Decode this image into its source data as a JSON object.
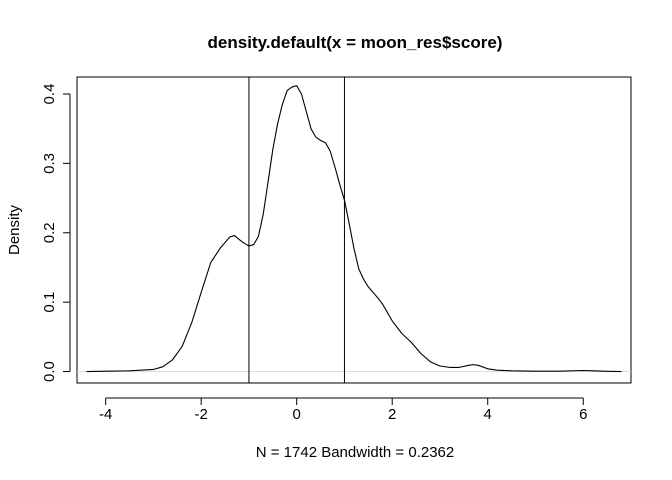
{
  "chart_data": {
    "type": "line",
    "title": "density.default(x = moon_res$score)",
    "xlabel": "N = 1742   Bandwidth = 0.2362",
    "ylabel": "Density",
    "xlim": [
      -4.6,
      7.0
    ],
    "ylim": [
      -0.0165,
      0.4245
    ],
    "x_ticks": [
      -4,
      -2,
      0,
      2,
      4,
      6
    ],
    "x_tick_labels": [
      "-4",
      "-2",
      "0",
      "2",
      "4",
      "6"
    ],
    "y_ticks": [
      0.0,
      0.1,
      0.2,
      0.3,
      0.4
    ],
    "y_tick_labels": [
      "0.0",
      "0.1",
      "0.2",
      "0.3",
      "0.4"
    ],
    "vertical_lines": [
      -1,
      1
    ],
    "zero_line": true,
    "grid": false,
    "series": [
      {
        "x": [
          -4.4,
          -4.0,
          -3.5,
          -3.0,
          -2.8,
          -2.6,
          -2.4,
          -2.2,
          -2.0,
          -1.8,
          -1.6,
          -1.4,
          -1.3,
          -1.2,
          -1.1,
          -1.0,
          -0.9,
          -0.8,
          -0.7,
          -0.6,
          -0.5,
          -0.4,
          -0.3,
          -0.2,
          -0.1,
          0.0,
          0.1,
          0.2,
          0.3,
          0.4,
          0.5,
          0.6,
          0.7,
          0.8,
          0.9,
          1.0,
          1.1,
          1.2,
          1.3,
          1.4,
          1.5,
          1.6,
          1.7,
          1.8,
          1.9,
          2.0,
          2.2,
          2.4,
          2.6,
          2.8,
          3.0,
          3.2,
          3.4,
          3.6,
          3.7,
          3.8,
          4.0,
          4.2,
          4.5,
          5.0,
          5.5,
          6.0,
          6.2,
          6.5,
          6.8
        ],
        "y": [
          0.0,
          0.0005,
          0.001,
          0.003,
          0.007,
          0.017,
          0.036,
          0.07,
          0.114,
          0.157,
          0.178,
          0.194,
          0.196,
          0.19,
          0.185,
          0.181,
          0.183,
          0.195,
          0.227,
          0.273,
          0.32,
          0.357,
          0.385,
          0.405,
          0.41,
          0.412,
          0.4,
          0.375,
          0.35,
          0.338,
          0.333,
          0.33,
          0.318,
          0.295,
          0.27,
          0.247,
          0.213,
          0.177,
          0.148,
          0.133,
          0.122,
          0.114,
          0.106,
          0.097,
          0.085,
          0.073,
          0.055,
          0.042,
          0.026,
          0.014,
          0.008,
          0.006,
          0.006,
          0.009,
          0.01,
          0.009,
          0.004,
          0.002,
          0.001,
          0.0005,
          0.0005,
          0.0015,
          0.001,
          0.0003,
          0.0
        ]
      }
    ]
  }
}
